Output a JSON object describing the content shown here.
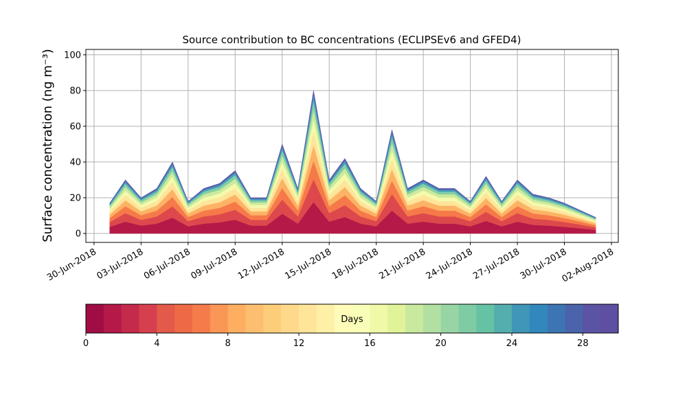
{
  "chart_data": {
    "type": "stacked_area",
    "title": "Source contribution to BC concentrations (ECLIPSEv6 and GFED4)",
    "y_label": "Surface concentration (ng m⁻³)",
    "x": [
      "2018-07-01",
      "2018-07-02",
      "2018-07-03",
      "2018-07-04",
      "2018-07-05",
      "2018-07-06",
      "2018-07-07",
      "2018-07-08",
      "2018-07-09",
      "2018-07-10",
      "2018-07-11",
      "2018-07-12",
      "2018-07-13",
      "2018-07-14",
      "2018-07-15",
      "2018-07-16",
      "2018-07-17",
      "2018-07-18",
      "2018-07-19",
      "2018-07-20",
      "2018-07-21",
      "2018-07-22",
      "2018-07-23",
      "2018-07-24",
      "2018-07-25",
      "2018-07-26",
      "2018-07-27",
      "2018-07-28",
      "2018-07-29",
      "2018-07-30",
      "2018-07-31",
      "2018-08-01"
    ],
    "series": [
      {
        "color": "#b41947",
        "values": [
          3.7,
          6.6,
          4.4,
          5.5,
          8.8,
          4.0,
          5.5,
          6.2,
          7.7,
          4.4,
          4.4,
          11,
          5.5,
          17.6,
          6.6,
          9.2,
          5.5,
          4.0,
          12.8,
          5.5,
          6.6,
          5.5,
          5.5,
          4.0,
          7.0,
          4.0,
          6.6,
          4.8,
          4.4,
          3.7,
          2.9,
          2.0
        ]
      },
      {
        "color": "#dc484c",
        "values": [
          2.7,
          4.8,
          3.2,
          4,
          6.4,
          2.9,
          4,
          4.5,
          5.6,
          3.2,
          3.2,
          8,
          4,
          12.8,
          4.8,
          6.7,
          4,
          2.9,
          9.3,
          4,
          4.8,
          4,
          4,
          2.9,
          5.1,
          2.9,
          4.8,
          3.5,
          3.2,
          2.7,
          2.1,
          1.4
        ]
      },
      {
        "color": "#f67a49",
        "values": [
          2.2,
          3.9,
          2.6,
          3.3,
          5.2,
          2.3,
          3.3,
          3.6,
          4.6,
          2.6,
          2.6,
          6.5,
          3.3,
          10.4,
          3.9,
          5.5,
          3.3,
          2.3,
          7.5,
          3.3,
          3.9,
          3.3,
          3.3,
          2.3,
          4.2,
          2.3,
          3.9,
          2.9,
          2.6,
          2.2,
          1.7,
          1.2
        ]
      },
      {
        "color": "#fdb365",
        "values": [
          1.9,
          3.3,
          2.2,
          2.8,
          4.4,
          2,
          2.8,
          3.1,
          3.9,
          2.2,
          2.2,
          5.5,
          2.8,
          8.8,
          3.3,
          4.6,
          2.8,
          2,
          6.4,
          2.8,
          3.3,
          2.8,
          2.8,
          2,
          3.5,
          2,
          3.3,
          2.4,
          2.2,
          1.9,
          1.4,
          1
        ]
      },
      {
        "color": "#fee59a",
        "values": [
          1.7,
          3,
          2,
          2.5,
          4,
          1.8,
          2.5,
          2.8,
          3.5,
          2,
          2,
          5,
          2.5,
          8,
          3,
          4.2,
          2.5,
          1.8,
          5.8,
          2.5,
          3,
          2.5,
          2.5,
          1.8,
          3.2,
          1.8,
          3,
          2.2,
          2,
          1.7,
          1.3,
          0.9
        ]
      },
      {
        "color": "#f4faad",
        "values": [
          1.4,
          2.4,
          1.6,
          2,
          3.2,
          1.4,
          2,
          2.2,
          2.8,
          1.6,
          1.6,
          4,
          2,
          6.4,
          2.4,
          3.4,
          2,
          1.4,
          4.6,
          2,
          2.4,
          2,
          2,
          1.4,
          2.6,
          1.4,
          2.4,
          1.8,
          1.6,
          1.4,
          1,
          0.7
        ]
      },
      {
        "color": "#ccea9d",
        "values": [
          1.2,
          2.1,
          1.4,
          1.8,
          2.8,
          1.3,
          1.8,
          2,
          2.5,
          1.4,
          1.4,
          3.5,
          1.8,
          5.6,
          2.1,
          2.9,
          1.8,
          1.3,
          4.1,
          1.8,
          2.1,
          1.8,
          1.8,
          1.3,
          2.2,
          1.3,
          2.1,
          1.5,
          1.4,
          1.2,
          0.9,
          0.6
        ]
      },
      {
        "color": "#84cfa5",
        "values": [
          1,
          1.8,
          1.2,
          1.5,
          2.4,
          1.1,
          1.5,
          1.7,
          2.1,
          1.2,
          1.2,
          3,
          1.5,
          4.8,
          1.8,
          2.5,
          1.5,
          1.1,
          3.5,
          1.5,
          1.8,
          1.5,
          1.5,
          1.1,
          1.9,
          1.1,
          1.8,
          1.3,
          1.2,
          1,
          0.8,
          0.5
        ]
      },
      {
        "color": "#459ebd",
        "values": [
          0.7,
          1.2,
          0.8,
          1,
          1.6,
          0.7,
          1,
          1.1,
          1.4,
          0.8,
          0.8,
          2,
          1,
          3.2,
          1.2,
          1.7,
          1,
          0.7,
          2.3,
          1,
          1.2,
          1,
          1,
          0.7,
          1.3,
          0.7,
          1.2,
          0.9,
          0.8,
          0.7,
          0.5,
          0.4
        ]
      },
      {
        "color": "#5a5eaa",
        "values": [
          0.5,
          0.9,
          0.6,
          0.8,
          1.2,
          0.5,
          0.8,
          0.8,
          1.1,
          0.6,
          0.6,
          1.5,
          0.8,
          2.4,
          0.9,
          1.3,
          0.8,
          0.5,
          1.7,
          0.8,
          0.9,
          0.8,
          0.8,
          0.5,
          1,
          0.5,
          0.9,
          0.7,
          0.6,
          0.5,
          0.4,
          0.3
        ]
      }
    ],
    "xlim": [
      "2018-06-29T11:30",
      "2018-08-02T10:30"
    ],
    "xticks": [
      {
        "value": "2018-06-30",
        "label": "30-Jun-2018"
      },
      {
        "value": "2018-07-03",
        "label": "03-Jul-2018"
      },
      {
        "value": "2018-07-06",
        "label": "06-Jul-2018"
      },
      {
        "value": "2018-07-09",
        "label": "09-Jul-2018"
      },
      {
        "value": "2018-07-12",
        "label": "12-Jul-2018"
      },
      {
        "value": "2018-07-15",
        "label": "15-Jul-2018"
      },
      {
        "value": "2018-07-18",
        "label": "18-Jul-2018"
      },
      {
        "value": "2018-07-21",
        "label": "21-Jul-2018"
      },
      {
        "value": "2018-07-24",
        "label": "24-Jul-2018"
      },
      {
        "value": "2018-07-27",
        "label": "27-Jul-2018"
      },
      {
        "value": "2018-07-30",
        "label": "30-Jul-2018"
      },
      {
        "value": "2018-08-02",
        "label": "02-Aug-2018"
      }
    ],
    "ylim": [
      -5,
      103
    ],
    "yticks": [
      0,
      20,
      40,
      60,
      80,
      100
    ],
    "grid": true,
    "colorbar": {
      "label": "Days",
      "lim": [
        0,
        30
      ],
      "ticks": [
        0,
        4,
        8,
        12,
        16,
        20,
        24,
        28
      ],
      "colors": [
        "#a00d45",
        "#b41947",
        "#c52a4b",
        "#d6404e",
        "#e35a4a",
        "#ee6a45",
        "#f57c4a",
        "#fa9656",
        "#fdae61",
        "#fdbf6f",
        "#fdcd7a",
        "#fed98b",
        "#fee599",
        "#fff0a8",
        "#fffbb9",
        "#fafdb8",
        "#f0f9a7",
        "#e1f399",
        "#c9e99e",
        "#b2e0a2",
        "#98d5a4",
        "#7ecba4",
        "#66c2a5",
        "#53aead",
        "#3f96b7",
        "#3288bd",
        "#3d75b3",
        "#4a63ab",
        "#5b53a4",
        "#5e4fa2"
      ]
    }
  }
}
